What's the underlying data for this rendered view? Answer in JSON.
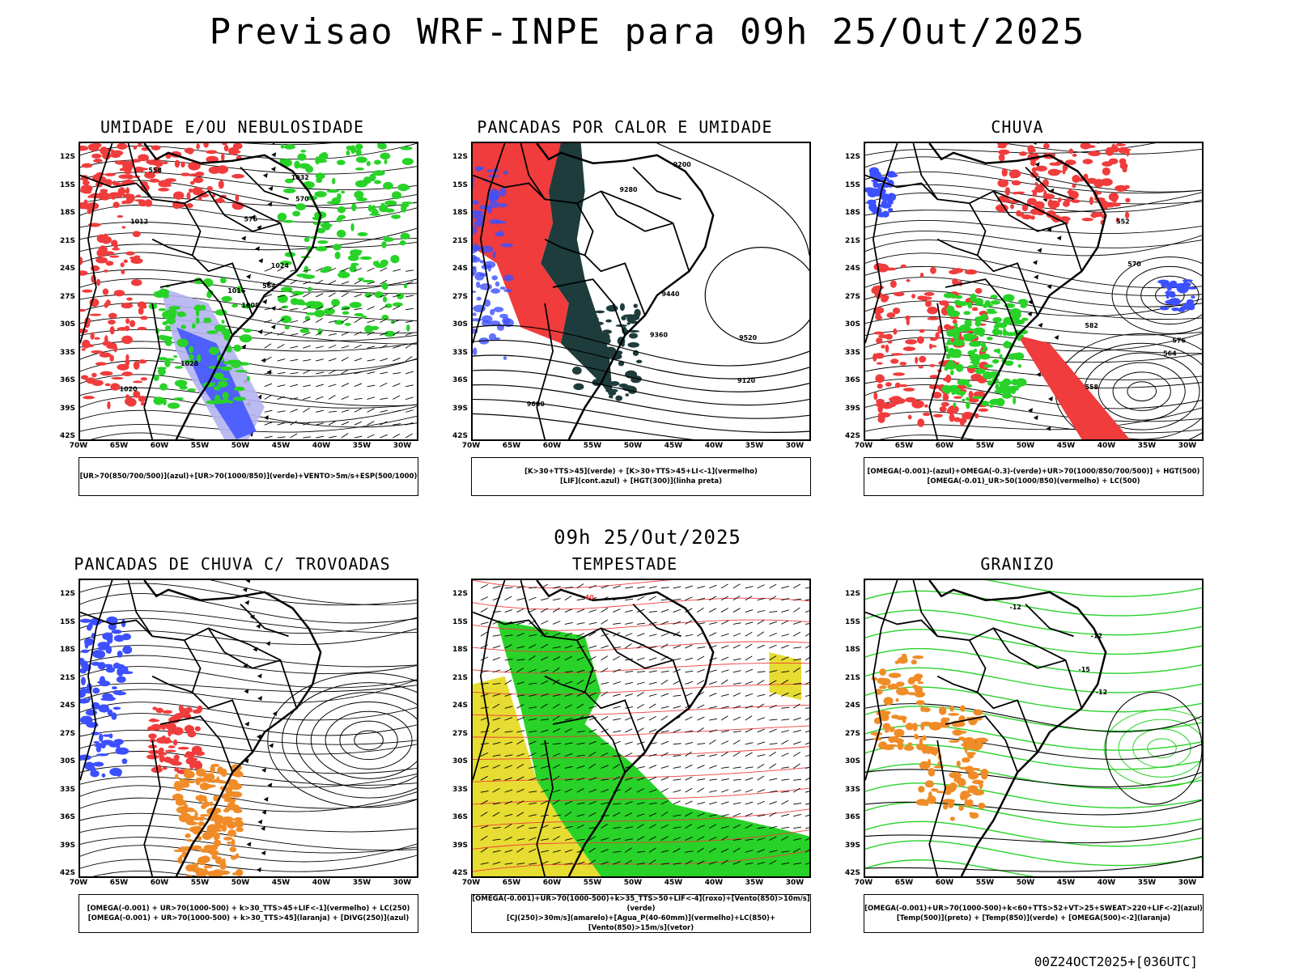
{
  "main_title": "Previsao WRF-INPE  para 09h 25/Out/2025",
  "mid_title": "09h 25/Out/2025",
  "footer": "00Z24OCT2025+[036UTC]",
  "lat_ticks": [
    "12S",
    "15S",
    "18S",
    "21S",
    "24S",
    "27S",
    "30S",
    "33S",
    "36S",
    "39S",
    "42S"
  ],
  "lon_ticks": [
    "70W",
    "65W",
    "60W",
    "55W",
    "50W",
    "45W",
    "40W",
    "35W",
    "30W"
  ],
  "colors": {
    "red": "#f03c3c",
    "blue": "#3c50ff",
    "green": "#28d228",
    "darkteal": "#1e3c3c",
    "orange": "#f08c28",
    "yellow": "#e6dc32",
    "lavender": "#b4b4f0"
  },
  "panels": [
    {
      "title": "UMIDADE E/OU NEBULOSIDADE",
      "legend": [
        "[UR>70(850/700/500)](azul)+[UR>70(1000/850)](verde)+VENTO>5m/s+ESP(500/1000)"
      ],
      "contour_labels": [
        "1008",
        "1012",
        "1016",
        "1020",
        "1024",
        "1028",
        "1032",
        "576",
        "570",
        "564",
        "558"
      ]
    },
    {
      "title": "PANCADAS POR CALOR E UMIDADE",
      "legend": [
        "[K>30+TTS>45](verde) + [K>30+TTS>45+LI<-1](vermelho)",
        "[LIF](cont.azul) + [HGT(300)](linha preta)"
      ],
      "contour_labels": [
        "9600",
        "9520",
        "9440",
        "9360",
        "9280",
        "9200",
        "9120"
      ]
    },
    {
      "title": "CHUVA",
      "legend": [
        "[OMEGA(-0.001)-(azul)+OMEGA(-0.3)-(verde)+UR>70(1000/850/700/500)] + HGT(500)",
        "[OMEGA(-0.01)_UR>50(1000/850)(vermelho) + LC(500)"
      ],
      "contour_labels": [
        "582",
        "576",
        "570",
        "564",
        "558",
        "552"
      ]
    },
    {
      "title": "PANCADAS DE CHUVA C/ TROVOADAS",
      "legend": [
        "[OMEGA(-0.001) + UR>70(1000-500) + k>30_TTS>45+LIF<-1](vermelho) + LC(250)",
        "[OMEGA(-0.001) + UR>70(1000-500) + k>30_TTS>45](laranja) + [DIVG(250)](azul)"
      ],
      "contour_labels": []
    },
    {
      "title": "TEMPESTADE",
      "legend": [
        "[OMEGA(-0.001)+UR>70(1000-500)+k>35_TTS>50+LIF<-4](roxo)+[Vento(850)>10m/s](verde)",
        "[CJ(250)>30m/s](amarelo)+[Agua_P(40-60mm)](vermelho)+LC(850)+[Vento(850)>15m/s](vetor)"
      ],
      "contour_labels": [
        "40"
      ]
    },
    {
      "title": "GRANIZO",
      "legend": [
        "[OMEGA(-0.001)+UR>70(1000-500)+k<60+TTS>52+VT>25+SWEAT>220+LIF<-2](azul)",
        "[Temp(500)](preto) + [Temp(850)](verde) + [OMEGA(500)<-2](laranja)"
      ],
      "contour_labels": [
        "-12",
        "-15",
        "-12",
        "-12"
      ]
    }
  ]
}
